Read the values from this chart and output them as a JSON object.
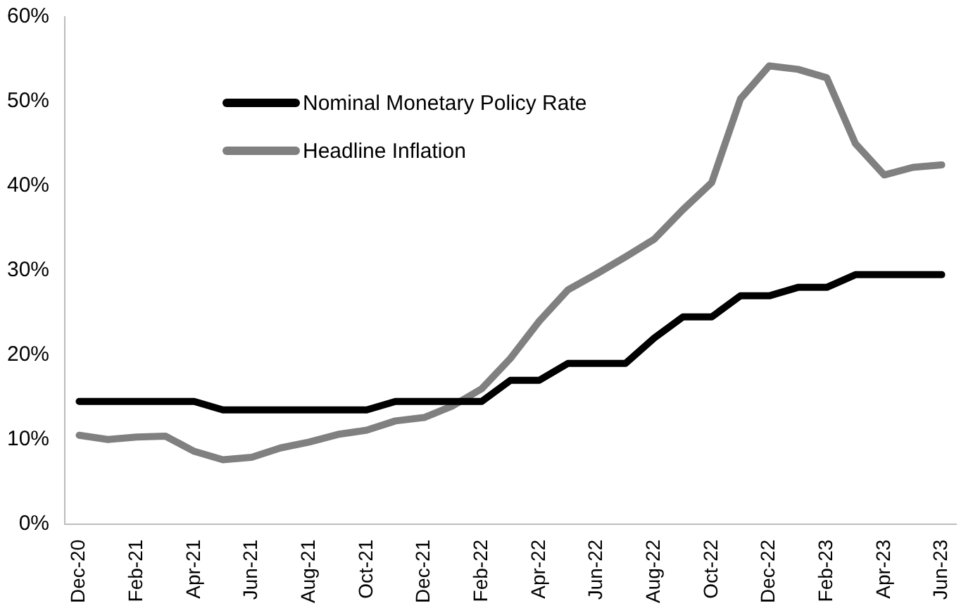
{
  "chart_data": {
    "type": "line",
    "categories": [
      "Dec-20",
      null,
      "Feb-21",
      null,
      "Apr-21",
      null,
      "Jun-21",
      null,
      "Aug-21",
      null,
      "Oct-21",
      null,
      "Dec-21",
      null,
      "Feb-22",
      null,
      "Apr-22",
      null,
      "Jun-22",
      null,
      "Aug-22",
      null,
      "Oct-22",
      null,
      "Dec-22",
      null,
      "Feb-23",
      null,
      "Apr-23",
      null,
      "Jun-23"
    ],
    "series": [
      {
        "name": "Nominal Monetary Policy Rate",
        "color": "#000000",
        "values": [
          14.5,
          14.5,
          14.5,
          14.5,
          14.5,
          13.5,
          13.5,
          13.5,
          13.5,
          13.5,
          13.5,
          14.5,
          14.5,
          14.5,
          14.5,
          17,
          17,
          19,
          19,
          19,
          22,
          24.5,
          24.5,
          27,
          27,
          28,
          28,
          29.5,
          29.5,
          29.5,
          29.5
        ]
      },
      {
        "name": "Headline Inflation",
        "color": "#808080",
        "values": [
          10.5,
          10,
          10.3,
          10.4,
          8.6,
          7.6,
          7.9,
          9,
          9.7,
          10.6,
          11.1,
          12.2,
          12.6,
          14,
          16,
          19.6,
          24,
          27.7,
          29.6,
          31.6,
          33.7,
          37.2,
          40.4,
          50.3,
          54.2,
          53.8,
          52.8,
          45,
          41.3,
          42.2,
          42.5
        ]
      }
    ],
    "ylim": [
      0,
      60
    ],
    "yticks": [
      {
        "value": 0,
        "label": "0%"
      },
      {
        "value": 10,
        "label": "10%"
      },
      {
        "value": 20,
        "label": "20%"
      },
      {
        "value": 30,
        "label": "30%"
      },
      {
        "value": 40,
        "label": "40%"
      },
      {
        "value": 50,
        "label": "50%"
      },
      {
        "value": 60,
        "label": "60%"
      }
    ],
    "grid": false,
    "legend": "top left",
    "marker": "none",
    "line_style": "solid"
  }
}
